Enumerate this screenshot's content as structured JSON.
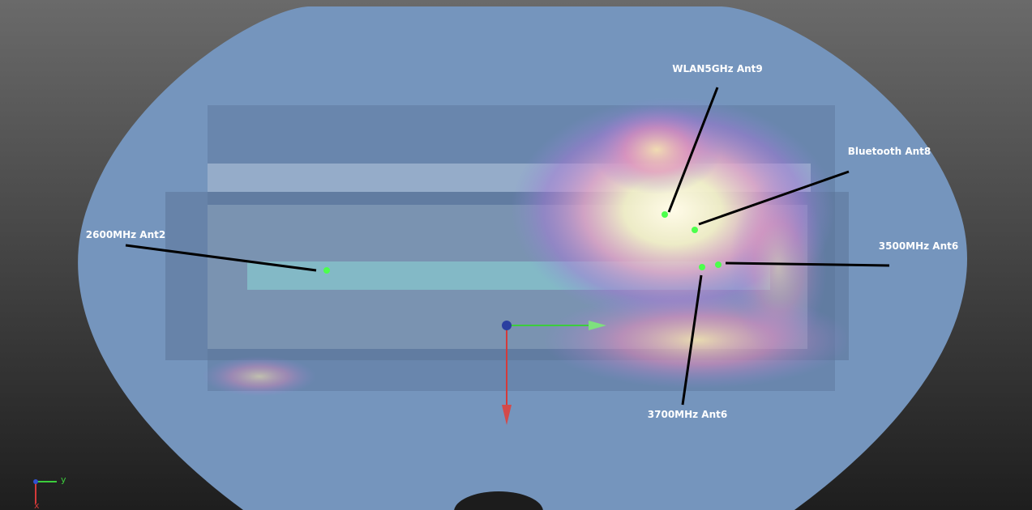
{
  "annotations": [
    {
      "label": "WLAN5GHz Ant9"
    },
    {
      "label": "Bluetooth Ant8"
    },
    {
      "label": "2600MHz Ant2"
    },
    {
      "label": "3500MHz Ant6"
    },
    {
      "label": "3700MHz Ant6"
    }
  ],
  "axes_triad": {
    "y_label": "y",
    "x_label": "x"
  }
}
